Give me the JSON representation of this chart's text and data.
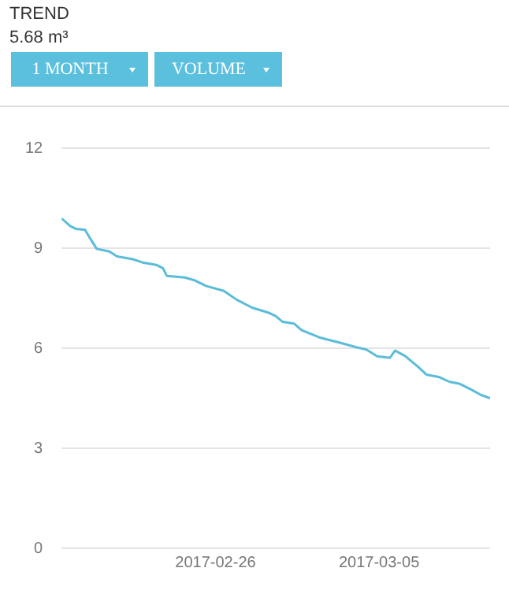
{
  "chart_data": {
    "type": "line",
    "title": "TREND",
    "subtitle": "5.68 m³",
    "annotations": [
      "1 MONTH",
      "VOLUME"
    ],
    "x": [
      "2017-02-19T10:00",
      "2017-02-19T19:00",
      "2017-02-20T00:30",
      "2017-02-20T10:00",
      "2017-02-20T15:30",
      "2017-02-20T22:00",
      "2017-02-21T11:00",
      "2017-02-21T19:00",
      "2017-02-22T11:00",
      "2017-02-22T21:00",
      "2017-02-23T11:00",
      "2017-02-23T18:00",
      "2017-02-23T22:00",
      "2017-02-24T16:30",
      "2017-02-25T03:00",
      "2017-02-25T14:00",
      "2017-02-26T08:30",
      "2017-02-26T22:00",
      "2017-02-27T14:00",
      "2017-02-28T06:00",
      "2017-02-28T14:00",
      "2017-02-28T21:00",
      "2017-03-01T08:30",
      "2017-03-01T16:30",
      "2017-03-02T11:00",
      "2017-03-03T08:30",
      "2017-03-04T00:30",
      "2017-03-04T11:00",
      "2017-03-04T22:00",
      "2017-03-05T11:00",
      "2017-03-05T16:30",
      "2017-03-06T03:00",
      "2017-03-06T16:30",
      "2017-03-07T00:30",
      "2017-03-07T14:00",
      "2017-03-08T00:30",
      "2017-03-08T11:00",
      "2017-03-08T22:00",
      "2017-03-09T08:30",
      "2017-03-09T18:00"
    ],
    "series": [
      {
        "color": "#5bbcd9",
        "values": [
          9.89,
          9.66,
          9.58,
          9.55,
          9.28,
          8.98,
          8.9,
          8.75,
          8.67,
          8.57,
          8.5,
          8.4,
          8.17,
          8.12,
          8.03,
          7.87,
          7.72,
          7.45,
          7.21,
          7.07,
          6.96,
          6.79,
          6.74,
          6.54,
          6.32,
          6.16,
          6.03,
          5.96,
          5.76,
          5.71,
          5.93,
          5.76,
          5.43,
          5.21,
          5.13,
          4.99,
          4.93,
          4.77,
          4.6,
          4.5
        ]
      }
    ],
    "xlim": [
      "2017-02-19T10:00",
      "2017-03-09T18:00"
    ],
    "xticks": [
      "2017-02-26",
      "2017-03-05"
    ],
    "ylim": [
      0,
      12
    ],
    "yticks": [
      0,
      3,
      6,
      9,
      12
    ],
    "grid": "y",
    "legend": false,
    "marker": "none",
    "line_style": "solid"
  }
}
